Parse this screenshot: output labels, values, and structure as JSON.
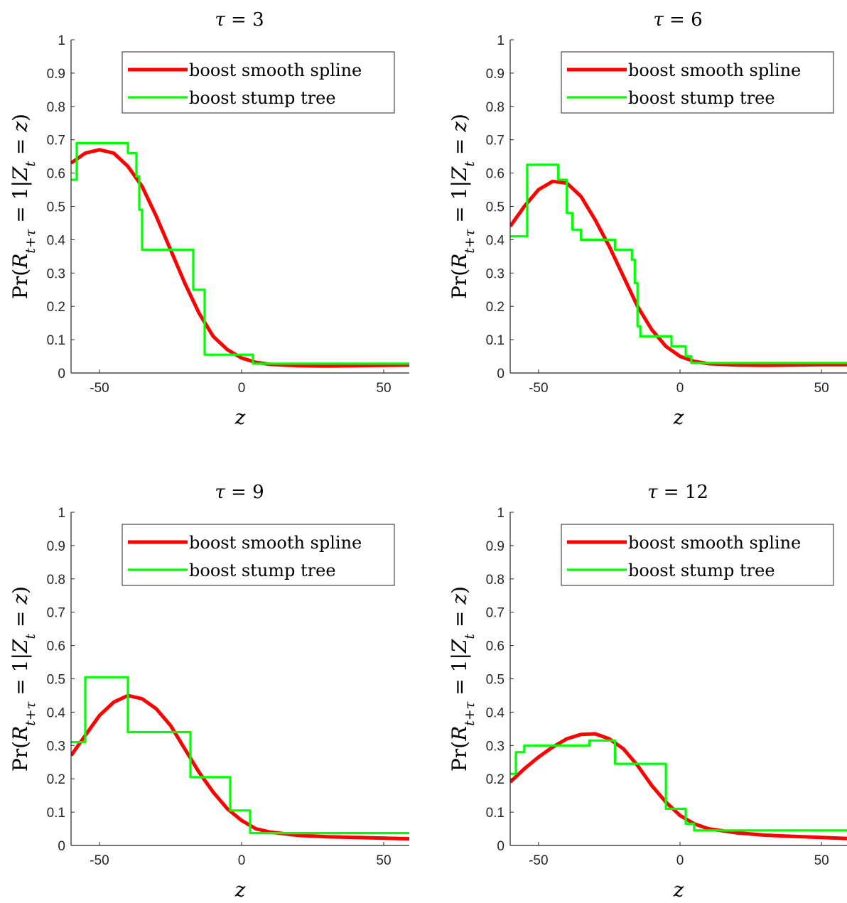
{
  "chart_data": [
    {
      "type": "line",
      "title": "τ = 3",
      "xlabel": "z",
      "ylabel": "Pr(R_{t+τ} = 1|Z_t = z)",
      "xlim": [
        -60,
        59
      ],
      "ylim": [
        0,
        1
      ],
      "xticks": [
        "-50",
        "0",
        "50"
      ],
      "yticks": [
        "0",
        "0.1",
        "0.2",
        "0.3",
        "0.4",
        "0.5",
        "0.6",
        "0.7",
        "0.8",
        "0.9",
        "1"
      ],
      "legend_position": "top-right",
      "series": [
        {
          "name": "boost smooth spline",
          "color": "#ff0000",
          "x": [
            -60,
            -55,
            -50,
            -45,
            -40,
            -35,
            -30,
            -25,
            -20,
            -15,
            -10,
            -5,
            0,
            5,
            10,
            20,
            30,
            40,
            50,
            59
          ],
          "y": [
            0.63,
            0.66,
            0.67,
            0.66,
            0.62,
            0.56,
            0.47,
            0.37,
            0.27,
            0.18,
            0.11,
            0.07,
            0.045,
            0.032,
            0.026,
            0.022,
            0.021,
            0.022,
            0.023,
            0.024
          ]
        },
        {
          "name": "boost stump tree",
          "color": "#00ff00",
          "x": [
            -60,
            -58,
            -58,
            -40,
            -40,
            -37,
            -37,
            -36,
            -36,
            -35,
            -35,
            -34,
            -34,
            -17,
            -17,
            -13,
            -13,
            4,
            4,
            59
          ],
          "y": [
            0.58,
            0.58,
            0.69,
            0.69,
            0.66,
            0.66,
            0.59,
            0.59,
            0.49,
            0.49,
            0.37,
            0.37,
            0.37,
            0.37,
            0.25,
            0.25,
            0.055,
            0.055,
            0.028,
            0.028
          ]
        }
      ]
    },
    {
      "type": "line",
      "title": "τ = 6",
      "xlabel": "z",
      "ylabel": "Pr(R_{t+τ} = 1|Z_t = z)",
      "xlim": [
        -60,
        59
      ],
      "ylim": [
        0,
        1
      ],
      "xticks": [
        "-50",
        "0",
        "50"
      ],
      "yticks": [
        "0",
        "0.1",
        "0.2",
        "0.3",
        "0.4",
        "0.5",
        "0.6",
        "0.7",
        "0.8",
        "0.9",
        "1"
      ],
      "legend_position": "top-right",
      "series": [
        {
          "name": "boost smooth spline",
          "color": "#ff0000",
          "x": [
            -60,
            -55,
            -50,
            -45,
            -40,
            -35,
            -30,
            -25,
            -20,
            -15,
            -10,
            -5,
            0,
            5,
            10,
            20,
            30,
            40,
            50,
            59
          ],
          "y": [
            0.44,
            0.5,
            0.55,
            0.575,
            0.57,
            0.53,
            0.46,
            0.38,
            0.29,
            0.2,
            0.13,
            0.08,
            0.05,
            0.035,
            0.028,
            0.024,
            0.023,
            0.024,
            0.025,
            0.025
          ]
        },
        {
          "name": "boost stump tree",
          "color": "#00ff00",
          "x": [
            -60,
            -54,
            -54,
            -43,
            -43,
            -40,
            -40,
            -38,
            -38,
            -35,
            -35,
            -23,
            -23,
            -17,
            -17,
            -16,
            -16,
            -15,
            -15,
            -14,
            -14,
            -3,
            -3,
            2,
            2,
            4,
            4,
            59
          ],
          "y": [
            0.41,
            0.41,
            0.625,
            0.625,
            0.58,
            0.58,
            0.48,
            0.48,
            0.43,
            0.43,
            0.4,
            0.4,
            0.37,
            0.37,
            0.34,
            0.34,
            0.27,
            0.27,
            0.14,
            0.14,
            0.11,
            0.11,
            0.08,
            0.08,
            0.05,
            0.05,
            0.03,
            0.03
          ]
        }
      ]
    },
    {
      "type": "line",
      "title": "τ = 9",
      "xlabel": "z",
      "ylabel": "Pr(R_{t+τ} = 1|Z_t = z)",
      "xlim": [
        -60,
        59
      ],
      "ylim": [
        0,
        1
      ],
      "xticks": [
        "-50",
        "0",
        "50"
      ],
      "yticks": [
        "0",
        "0.1",
        "0.2",
        "0.3",
        "0.4",
        "0.5",
        "0.6",
        "0.7",
        "0.8",
        "0.9",
        "1"
      ],
      "legend_position": "top-right",
      "series": [
        {
          "name": "boost smooth spline",
          "color": "#ff0000",
          "x": [
            -60,
            -55,
            -50,
            -45,
            -40,
            -35,
            -30,
            -25,
            -20,
            -15,
            -10,
            -5,
            0,
            5,
            10,
            20,
            30,
            40,
            50,
            59
          ],
          "y": [
            0.27,
            0.33,
            0.39,
            0.43,
            0.45,
            0.44,
            0.41,
            0.36,
            0.29,
            0.22,
            0.16,
            0.11,
            0.075,
            0.05,
            0.04,
            0.03,
            0.026,
            0.024,
            0.022,
            0.02
          ]
        },
        {
          "name": "boost stump tree",
          "color": "#00ff00",
          "x": [
            -60,
            -55,
            -55,
            -40,
            -40,
            -18,
            -18,
            -4,
            -4,
            3,
            3,
            59
          ],
          "y": [
            0.31,
            0.31,
            0.505,
            0.505,
            0.34,
            0.34,
            0.205,
            0.205,
            0.105,
            0.105,
            0.037,
            0.037
          ]
        }
      ]
    },
    {
      "type": "line",
      "title": "τ = 12",
      "xlabel": "z",
      "ylabel": "Pr(R_{t+τ} = 1|Z_t = z)",
      "xlim": [
        -60,
        59
      ],
      "ylim": [
        0,
        1
      ],
      "xticks": [
        "-50",
        "0",
        "50"
      ],
      "yticks": [
        "0",
        "0.1",
        "0.2",
        "0.3",
        "0.4",
        "0.5",
        "0.6",
        "0.7",
        "0.8",
        "0.9",
        "1"
      ],
      "legend_position": "top-right",
      "series": [
        {
          "name": "boost smooth spline",
          "color": "#ff0000",
          "x": [
            -60,
            -55,
            -50,
            -45,
            -40,
            -35,
            -30,
            -25,
            -20,
            -15,
            -10,
            -5,
            0,
            5,
            10,
            20,
            30,
            40,
            50,
            59
          ],
          "y": [
            0.19,
            0.23,
            0.265,
            0.295,
            0.32,
            0.333,
            0.335,
            0.32,
            0.29,
            0.24,
            0.18,
            0.13,
            0.09,
            0.065,
            0.05,
            0.038,
            0.031,
            0.027,
            0.024,
            0.021
          ]
        },
        {
          "name": "boost stump tree",
          "color": "#00ff00",
          "x": [
            -60,
            -58,
            -58,
            -55,
            -55,
            -32,
            -32,
            -23,
            -23,
            -5,
            -5,
            2,
            2,
            5,
            5,
            59
          ],
          "y": [
            0.215,
            0.215,
            0.28,
            0.28,
            0.3,
            0.3,
            0.315,
            0.315,
            0.245,
            0.245,
            0.11,
            0.11,
            0.065,
            0.065,
            0.045,
            0.045
          ]
        }
      ]
    }
  ]
}
